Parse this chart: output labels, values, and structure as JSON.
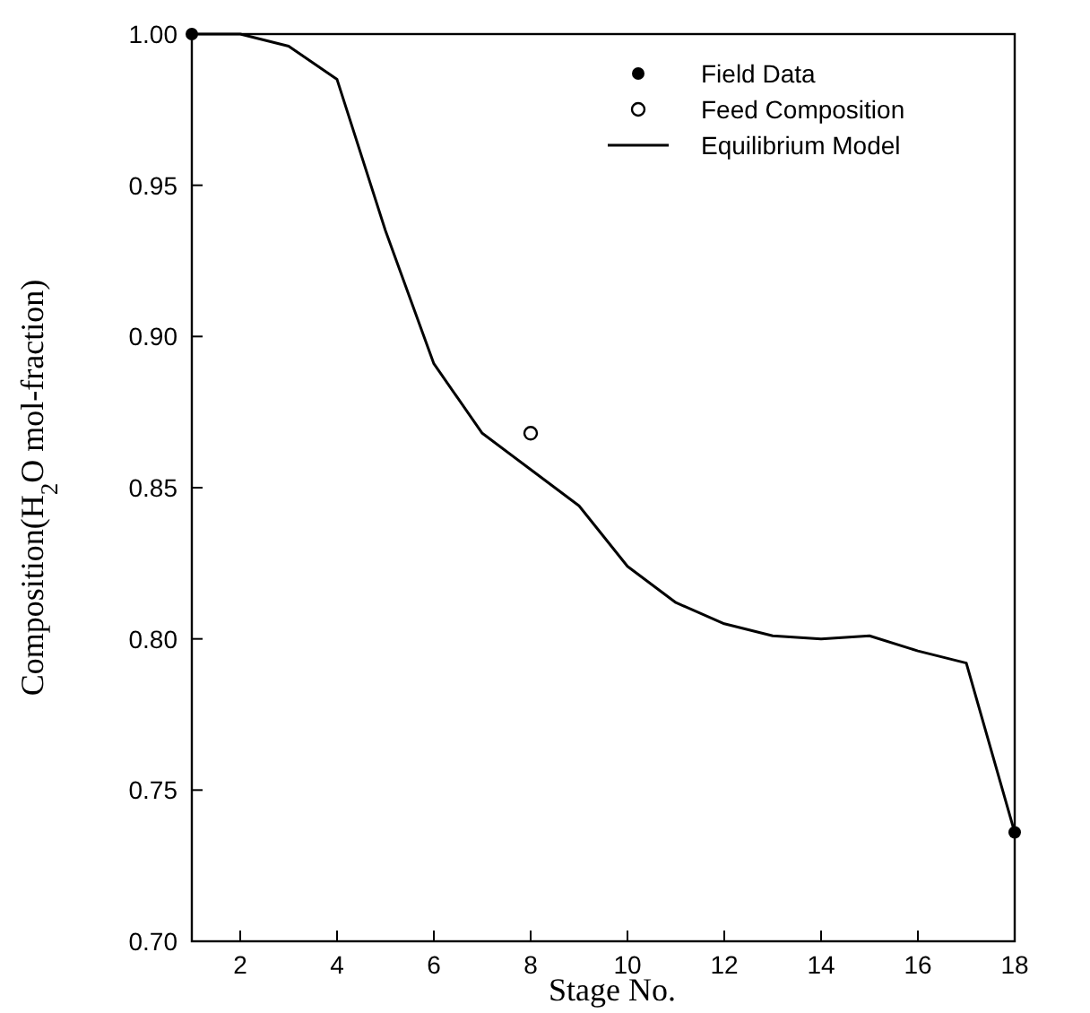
{
  "chart_data": {
    "type": "line",
    "xlabel": "Stage No.",
    "ylabel": "Composition(H$_{2}$O mol-fraction)",
    "xlim": [
      1,
      18
    ],
    "xticks": [
      2,
      4,
      6,
      8,
      10,
      12,
      14,
      16,
      18
    ],
    "ylim": [
      0.7,
      1.0
    ],
    "yticks": [
      {
        "value": 0.7,
        "label": "0.70"
      },
      {
        "value": 0.75,
        "label": "0.75"
      },
      {
        "value": 0.8,
        "label": "0.80"
      },
      {
        "value": 0.85,
        "label": "0.85"
      },
      {
        "value": 0.9,
        "label": "0.90"
      },
      {
        "value": 0.95,
        "label": "0.95"
      },
      {
        "value": 1.0,
        "label": "1.00"
      }
    ],
    "grid": false,
    "legend": "top right",
    "series": [
      {
        "name": "Field Data",
        "type": "scatter",
        "marker": "circle",
        "color": "#000000",
        "x": [
          1,
          18
        ],
        "values": [
          1.0,
          0.736
        ]
      },
      {
        "name": "Feed Composition",
        "type": "scatter",
        "marker": "open circle",
        "color": "#000000",
        "x": [
          8
        ],
        "values": [
          0.868
        ]
      },
      {
        "name": "Equilibrium Model",
        "marker": "none",
        "line_style": "solid",
        "color": "#000000",
        "x": [
          1,
          2,
          3,
          4,
          5,
          6,
          7,
          8,
          9,
          10,
          11,
          12,
          13,
          14,
          15,
          16,
          17,
          18
        ],
        "values": [
          1.0,
          1.0,
          0.996,
          0.985,
          0.935,
          0.891,
          0.868,
          0.856,
          0.844,
          0.824,
          0.812,
          0.805,
          0.801,
          0.8,
          0.801,
          0.796,
          0.792,
          0.736
        ]
      }
    ]
  }
}
